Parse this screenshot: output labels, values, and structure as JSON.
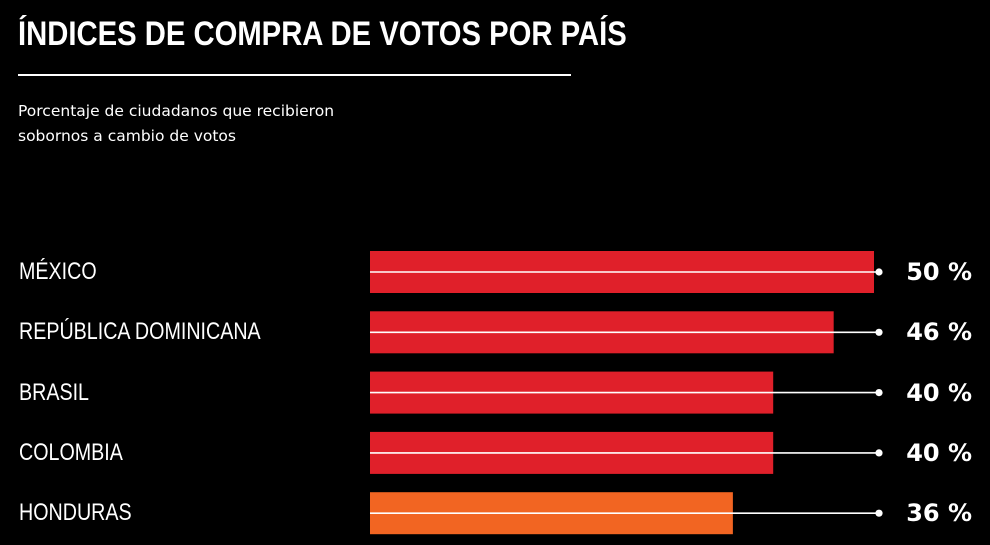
{
  "header": {
    "title": "ÍNDICES DE COMPRA DE VOTOS POR PAÍS",
    "subtitle": "Porcentaje de ciudadanos que recibieron sobornos a cambio de votos"
  },
  "colors": {
    "background": "#000000",
    "bar_red": "#e0202a",
    "bar_orange": "#f26522",
    "text": "#ffffff"
  },
  "chart_data": {
    "type": "bar",
    "orientation": "horizontal",
    "title": "ÍNDICES DE COMPRA DE VOTOS POR PAÍS",
    "subtitle": "Porcentaje de ciudadanos que recibieron sobornos a cambio de votos",
    "categories": [
      "MÉXICO",
      "REPÚBLICA DOMINICANA",
      "BRASIL",
      "COLOMBIA",
      "HONDURAS"
    ],
    "values": [
      50,
      46,
      40,
      40,
      36
    ],
    "value_labels": [
      "50 %",
      "46 %",
      "40 %",
      "40 %",
      "36 %"
    ],
    "bar_colors": [
      "#e0202a",
      "#e0202a",
      "#e0202a",
      "#e0202a",
      "#f26522"
    ],
    "unit": "%",
    "xlim": [
      0,
      50
    ],
    "grid": false,
    "legend": "none"
  }
}
